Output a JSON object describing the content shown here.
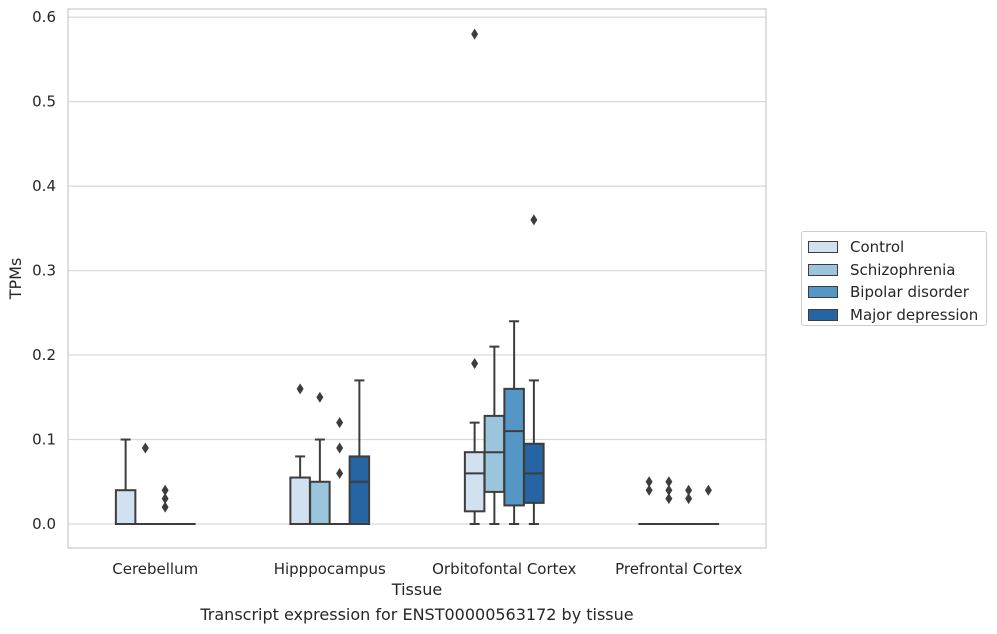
{
  "chart_data": {
    "type": "box",
    "title": "",
    "xlabel": "Tissue",
    "ylabel": "TPMs",
    "caption": "Transcript expression for ENST00000563172 by tissue",
    "ylim": [
      -0.03,
      0.61
    ],
    "yticks": [
      0.0,
      0.1,
      0.2,
      0.3,
      0.4,
      0.5,
      0.6
    ],
    "ytick_labels": [
      "0.0",
      "0.1",
      "0.2",
      "0.3",
      "0.4",
      "0.5",
      "0.6"
    ],
    "grid": "horizontal",
    "legend_position": "right",
    "categories": [
      "Cerebellum",
      "Hipppocampus",
      "Orbitofontal Cortex",
      "Prefrontal Cortex"
    ],
    "series": [
      {
        "name": "Control",
        "color": "#d1e1ef",
        "boxes": [
          {
            "q1": 0.0,
            "median": 0.0,
            "q3": 0.04,
            "whisker_low": 0.0,
            "whisker_high": 0.1,
            "outliers": []
          },
          {
            "q1": 0.0,
            "median": 0.0,
            "q3": 0.055,
            "whisker_low": 0.0,
            "whisker_high": 0.08,
            "outliers": [
              0.16
            ]
          },
          {
            "q1": 0.015,
            "median": 0.06,
            "q3": 0.085,
            "whisker_low": 0.0,
            "whisker_high": 0.12,
            "outliers": [
              0.19,
              0.58
            ]
          },
          {
            "q1": 0.0,
            "median": 0.0,
            "q3": 0.0,
            "whisker_low": 0.0,
            "whisker_high": 0.0,
            "outliers": [
              0.04,
              0.05
            ]
          }
        ]
      },
      {
        "name": "Schizophrenia",
        "color": "#9ac5dc",
        "boxes": [
          {
            "q1": 0.0,
            "median": 0.0,
            "q3": 0.0,
            "whisker_low": 0.0,
            "whisker_high": 0.0,
            "outliers": [
              0.09
            ]
          },
          {
            "q1": 0.0,
            "median": 0.0,
            "q3": 0.05,
            "whisker_low": 0.0,
            "whisker_high": 0.1,
            "outliers": [
              0.15
            ]
          },
          {
            "q1": 0.038,
            "median": 0.085,
            "q3": 0.128,
            "whisker_low": 0.0,
            "whisker_high": 0.21,
            "outliers": []
          },
          {
            "q1": 0.0,
            "median": 0.0,
            "q3": 0.0,
            "whisker_low": 0.0,
            "whisker_high": 0.0,
            "outliers": [
              0.03,
              0.04,
              0.05
            ]
          }
        ]
      },
      {
        "name": "Bipolar disorder",
        "color": "#5497c6",
        "boxes": [
          {
            "q1": 0.0,
            "median": 0.0,
            "q3": 0.0,
            "whisker_low": 0.0,
            "whisker_high": 0.0,
            "outliers": [
              0.02,
              0.03,
              0.04
            ]
          },
          {
            "q1": 0.0,
            "median": 0.0,
            "q3": 0.0,
            "whisker_low": 0.0,
            "whisker_high": 0.0,
            "outliers": [
              0.06,
              0.09,
              0.12
            ]
          },
          {
            "q1": 0.022,
            "median": 0.11,
            "q3": 0.16,
            "whisker_low": 0.0,
            "whisker_high": 0.24,
            "outliers": []
          },
          {
            "q1": 0.0,
            "median": 0.0,
            "q3": 0.0,
            "whisker_low": 0.0,
            "whisker_high": 0.0,
            "outliers": [
              0.03,
              0.04
            ]
          }
        ]
      },
      {
        "name": "Major depression",
        "color": "#2664a4",
        "boxes": [
          {
            "q1": 0.0,
            "median": 0.0,
            "q3": 0.0,
            "whisker_low": 0.0,
            "whisker_high": 0.0,
            "outliers": []
          },
          {
            "q1": 0.0,
            "median": 0.05,
            "q3": 0.08,
            "whisker_low": 0.0,
            "whisker_high": 0.17,
            "outliers": []
          },
          {
            "q1": 0.025,
            "median": 0.06,
            "q3": 0.095,
            "whisker_low": 0.0,
            "whisker_high": 0.17,
            "outliers": [
              0.36
            ]
          },
          {
            "q1": 0.0,
            "median": 0.0,
            "q3": 0.0,
            "whisker_low": 0.0,
            "whisker_high": 0.0,
            "outliers": [
              0.04
            ]
          }
        ]
      }
    ]
  }
}
